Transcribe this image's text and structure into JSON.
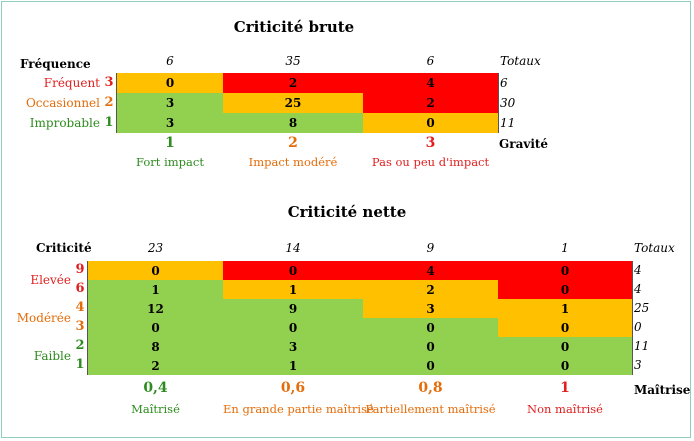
{
  "colors": {
    "green": "#92d050",
    "yellow": "#ffc000",
    "red": "#ff0000",
    "text_red": "#e02020",
    "text_orange": "#e46c0a",
    "text_green": "#2e8b1f"
  },
  "chart_data": [
    {
      "type": "heatmap",
      "title": "Criticité brute",
      "row_axis_label": "Fréquence",
      "col_axis_label": "Gravité",
      "totals_label": "Totaux",
      "rows": [
        {
          "label": "Fréquent",
          "level": "3",
          "values": [
            0,
            2,
            4
          ],
          "colors": [
            "yellow",
            "red",
            "red"
          ],
          "total": "6"
        },
        {
          "label": "Occasionnel",
          "level": "2",
          "values": [
            3,
            25,
            2
          ],
          "colors": [
            "green",
            "yellow",
            "red"
          ],
          "total": "30"
        },
        {
          "label": "Improbable",
          "level": "1",
          "values": [
            3,
            8,
            0
          ],
          "colors": [
            "green",
            "green",
            "yellow"
          ],
          "total": "11"
        }
      ],
      "columns": [
        {
          "level": "1",
          "label": "Fort impact",
          "total": "6",
          "color": "text_green"
        },
        {
          "level": "2",
          "label": "Impact modéré",
          "total": "35",
          "color": "text_orange"
        },
        {
          "level": "3",
          "label": "Pas ou peu d'impact",
          "total": "6",
          "color": "text_red"
        }
      ]
    },
    {
      "type": "heatmap",
      "title": "Criticité nette",
      "row_axis_label": "Criticité",
      "col_axis_label": "Maîtrise",
      "totals_label": "Totaux",
      "row_groups": [
        {
          "label": "Elevée",
          "color": "text_red",
          "levels": [
            "9",
            "6"
          ]
        },
        {
          "label": "Modérée",
          "color": "text_orange",
          "levels": [
            "4",
            "3"
          ]
        },
        {
          "label": "Faible",
          "color": "text_green",
          "levels": [
            "2",
            "1"
          ]
        }
      ],
      "rows": [
        {
          "level": "9",
          "values": [
            0,
            0,
            4,
            0
          ],
          "colors": [
            "yellow",
            "red",
            "red",
            "red"
          ],
          "total": "4"
        },
        {
          "level": "6",
          "values": [
            1,
            1,
            2,
            0
          ],
          "colors": [
            "green",
            "yellow",
            "yellow",
            "red"
          ],
          "total": "4"
        },
        {
          "level": "4",
          "values": [
            12,
            9,
            3,
            1
          ],
          "colors": [
            "green",
            "green",
            "yellow",
            "yellow"
          ],
          "total": "25"
        },
        {
          "level": "3",
          "values": [
            0,
            0,
            0,
            0
          ],
          "colors": [
            "green",
            "green",
            "green",
            "yellow"
          ],
          "total": "0"
        },
        {
          "level": "2",
          "values": [
            8,
            3,
            0,
            0
          ],
          "colors": [
            "green",
            "green",
            "green",
            "green"
          ],
          "total": "11"
        },
        {
          "level": "1",
          "values": [
            2,
            1,
            0,
            0
          ],
          "colors": [
            "green",
            "green",
            "green",
            "green"
          ],
          "total": "3"
        }
      ],
      "columns": [
        {
          "level": "0,4",
          "label": "Maîtrisé",
          "total": "23",
          "color": "text_green"
        },
        {
          "level": "0,6",
          "label": "En grande partie maîtrisé",
          "total": "14",
          "color": "text_orange"
        },
        {
          "level": "0,8",
          "label": "Partiellement maîtrisé",
          "total": "9",
          "color": "text_orange"
        },
        {
          "level": "1",
          "label": "Non maîtrisé",
          "total": "1",
          "color": "text_red"
        }
      ]
    }
  ]
}
